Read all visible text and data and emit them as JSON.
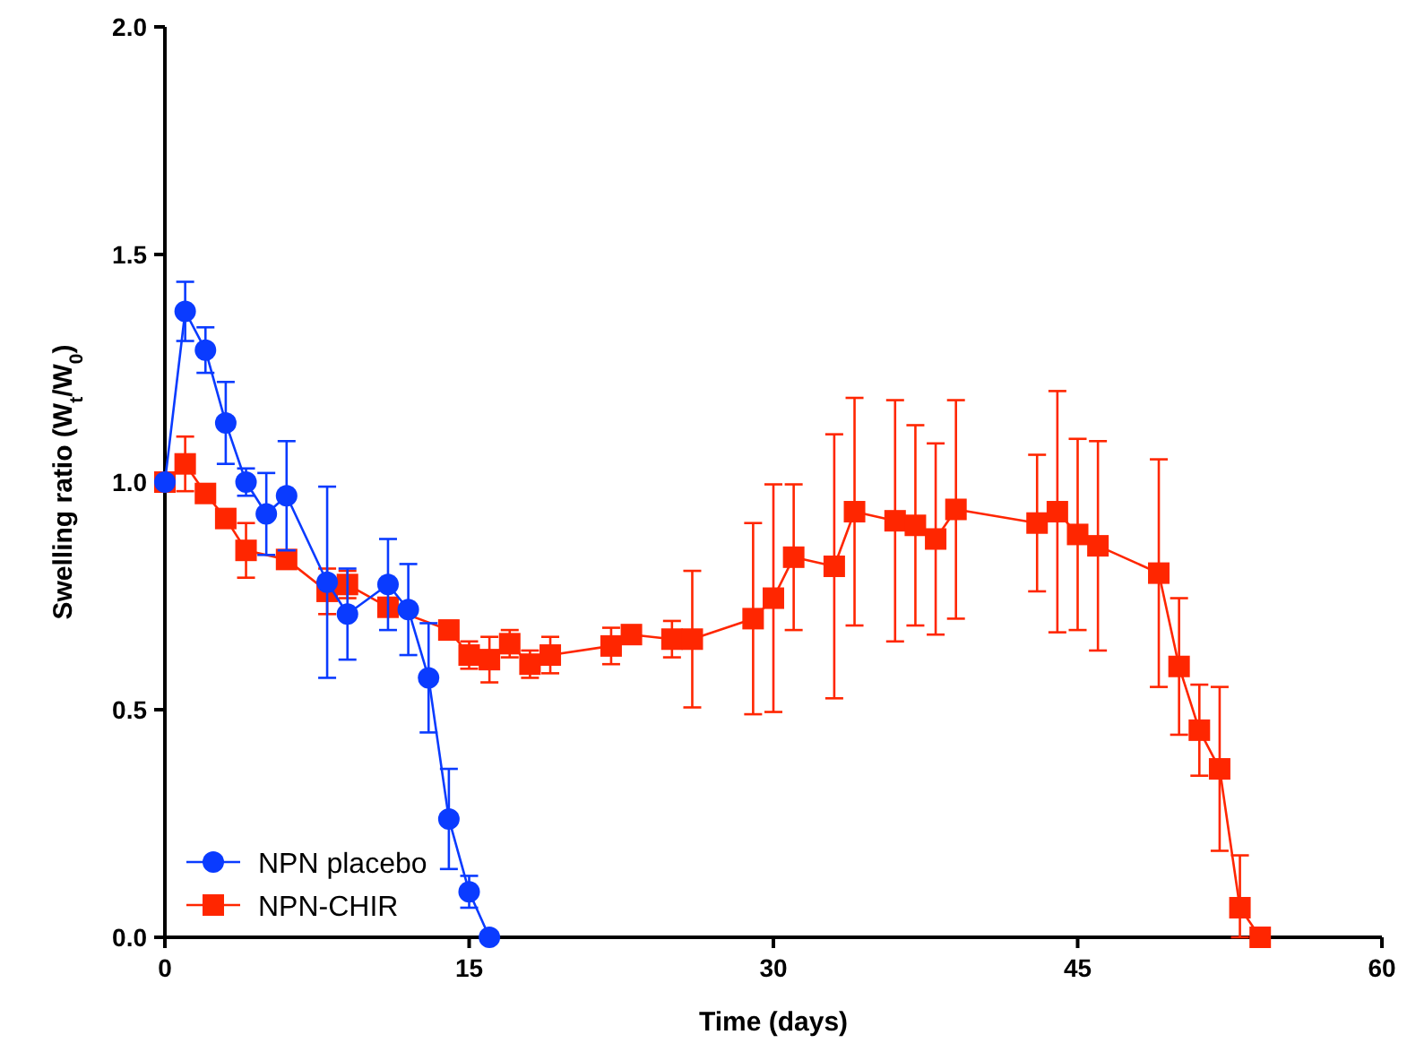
{
  "chart_data": {
    "type": "line",
    "xlabel": "Time (days)",
    "ylabel": "Swelling ratio (W$_{t}$/W$_{0}$)",
    "xlim": [
      0,
      60
    ],
    "xticks": [
      0,
      15,
      30,
      45,
      60
    ],
    "ylim": [
      0,
      2
    ],
    "yticks": [
      {
        "value": 0,
        "label": "0.0"
      },
      {
        "value": 0.5,
        "label": "0.5"
      },
      {
        "value": 1,
        "label": "1.0"
      },
      {
        "value": 1.5,
        "label": "1.5"
      },
      {
        "value": 2,
        "label": "2.0"
      }
    ],
    "legend": "bottom left",
    "grid": false,
    "series": [
      {
        "name": "NPN placebo",
        "color": "#0a3bff",
        "marker": "circle",
        "x": [
          0,
          1,
          2,
          3,
          4,
          5,
          6,
          8,
          9,
          11,
          12,
          13,
          14,
          15,
          16
        ],
        "values": [
          1.0,
          1.375,
          1.29,
          1.13,
          1.0,
          0.93,
          0.97,
          0.78,
          0.71,
          0.775,
          0.72,
          0.57,
          0.26,
          0.1,
          0
        ],
        "errors": [
          null,
          0.065,
          0.05,
          0.09,
          0.03,
          0.09,
          0.12,
          0.21,
          0.1,
          0.1,
          0.1,
          0.12,
          0.11,
          0.035,
          null
        ]
      },
      {
        "name": "NPN-CHIR",
        "color": "#ff2600",
        "marker": "square",
        "x": [
          0,
          1,
          2,
          3,
          4,
          6,
          8,
          9,
          11,
          14,
          15,
          16,
          17,
          18,
          19,
          22,
          23,
          25,
          26,
          29,
          30,
          31,
          33,
          34,
          36,
          37,
          38,
          39,
          43,
          44,
          45,
          46,
          49,
          50,
          51,
          52,
          53,
          54
        ],
        "values": [
          1.0,
          1.04,
          0.975,
          0.92,
          0.85,
          0.83,
          0.76,
          0.775,
          0.725,
          0.675,
          0.62,
          0.61,
          0.645,
          0.6,
          0.62,
          0.64,
          0.665,
          0.655,
          0.655,
          0.7,
          0.745,
          0.835,
          0.815,
          0.935,
          0.915,
          0.905,
          0.875,
          0.94,
          0.91,
          0.935,
          0.885,
          0.86,
          0.8,
          0.595,
          0.455,
          0.37,
          0.065,
          0
        ],
        "errors": [
          null,
          0.06,
          null,
          null,
          0.06,
          null,
          0.05,
          0.03,
          null,
          0.02,
          0.03,
          0.05,
          0.03,
          0.03,
          0.04,
          0.04,
          null,
          0.04,
          0.15,
          0.21,
          0.25,
          0.16,
          0.29,
          0.25,
          0.265,
          0.22,
          0.21,
          0.24,
          0.15,
          0.265,
          0.21,
          0.23,
          0.25,
          0.15,
          0.1,
          0.18,
          [
            0,
            0.18
          ],
          null
        ]
      }
    ]
  }
}
